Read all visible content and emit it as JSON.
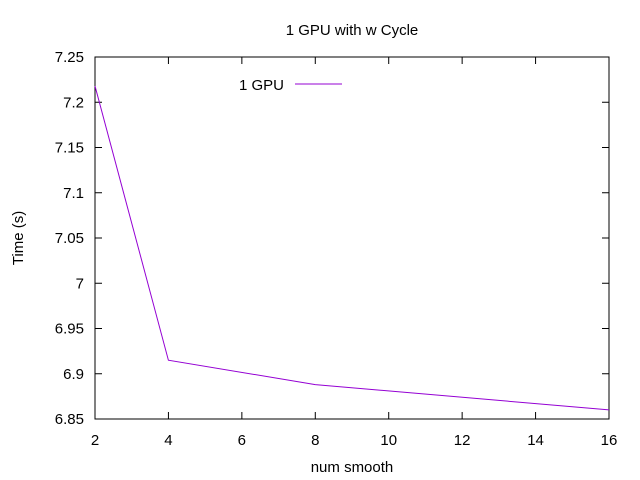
{
  "chart_data": {
    "type": "line",
    "title": "1 GPU with w Cycle",
    "xlabel": "num smooth",
    "ylabel": "Time (s)",
    "xlim": [
      2,
      16
    ],
    "ylim": [
      6.85,
      7.25
    ],
    "x_ticks": [
      2,
      4,
      6,
      8,
      10,
      12,
      14,
      16
    ],
    "y_ticks": [
      "6.85",
      "6.9",
      "6.95",
      "7",
      "7.05",
      "7.1",
      "7.15",
      "7.2",
      "7.25"
    ],
    "grid": false,
    "legend_position": "top-left",
    "series": [
      {
        "name": "1 GPU",
        "color": "#9400d3",
        "x": [
          2,
          4,
          8,
          16
        ],
        "y": [
          7.218,
          6.915,
          6.888,
          6.86
        ]
      }
    ]
  }
}
